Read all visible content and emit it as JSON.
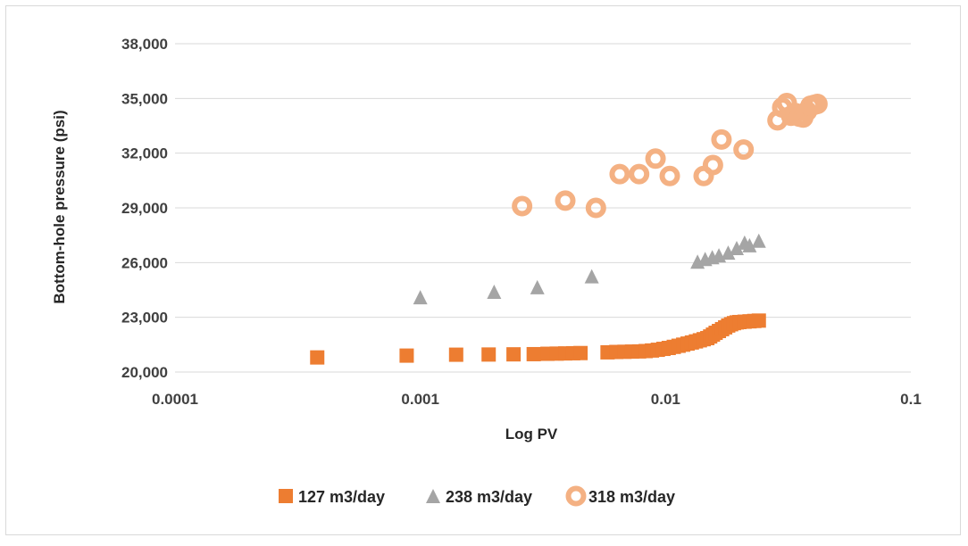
{
  "chart_data": {
    "type": "scatter",
    "title": "",
    "xlabel": "Log PV",
    "ylabel": "Bottom-hole pressure (psi)",
    "x_scale": "log",
    "xlim": [
      0.0001,
      0.1
    ],
    "ylim": [
      20000,
      38000
    ],
    "x_ticks": [
      0.0001,
      0.001,
      0.01,
      0.1
    ],
    "x_tick_labels": [
      "0.0001",
      "0.001",
      "0.01",
      "0.1"
    ],
    "y_ticks": [
      20000,
      23000,
      26000,
      29000,
      32000,
      35000,
      38000
    ],
    "y_tick_labels": [
      "20,000",
      "23,000",
      "26,000",
      "29,000",
      "32,000",
      "35,000",
      "38,000"
    ],
    "grid": true,
    "legend_position": "bottom",
    "series": [
      {
        "name": "127 m3/day",
        "marker": "square",
        "color": "#ed7d31",
        "points": [
          [
            0.00038,
            20800
          ],
          [
            0.00088,
            20900
          ],
          [
            0.0014,
            20950
          ],
          [
            0.0019,
            20960
          ],
          [
            0.0024,
            20970
          ],
          [
            0.0029,
            20980
          ],
          [
            0.0033,
            21000
          ],
          [
            0.0036,
            21010
          ],
          [
            0.0039,
            21020
          ],
          [
            0.0042,
            21030
          ],
          [
            0.0045,
            21040
          ],
          [
            0.0058,
            21080
          ],
          [
            0.0063,
            21100
          ],
          [
            0.0068,
            21110
          ],
          [
            0.0073,
            21120
          ],
          [
            0.0078,
            21130
          ],
          [
            0.0083,
            21150
          ],
          [
            0.0088,
            21180
          ],
          [
            0.0093,
            21220
          ],
          [
            0.0098,
            21270
          ],
          [
            0.0103,
            21320
          ],
          [
            0.0108,
            21380
          ],
          [
            0.0113,
            21440
          ],
          [
            0.0118,
            21500
          ],
          [
            0.0123,
            21560
          ],
          [
            0.0128,
            21620
          ],
          [
            0.0133,
            21680
          ],
          [
            0.0138,
            21740
          ],
          [
            0.0143,
            21800
          ],
          [
            0.0148,
            21860
          ],
          [
            0.0152,
            21950
          ],
          [
            0.0156,
            22050
          ],
          [
            0.016,
            22150
          ],
          [
            0.0165,
            22250
          ],
          [
            0.017,
            22350
          ],
          [
            0.0175,
            22450
          ],
          [
            0.018,
            22550
          ],
          [
            0.0185,
            22620
          ],
          [
            0.019,
            22680
          ],
          [
            0.0195,
            22720
          ],
          [
            0.02,
            22740
          ],
          [
            0.021,
            22760
          ],
          [
            0.022,
            22780
          ],
          [
            0.023,
            22800
          ],
          [
            0.024,
            22820
          ]
        ]
      },
      {
        "name": "238 m3/day",
        "marker": "triangle",
        "color": "#a5a5a5",
        "points": [
          [
            0.001,
            24100
          ],
          [
            0.002,
            24400
          ],
          [
            0.003,
            24650
          ],
          [
            0.005,
            25250
          ],
          [
            0.0135,
            26050
          ],
          [
            0.0145,
            26200
          ],
          [
            0.0155,
            26300
          ],
          [
            0.0165,
            26400
          ],
          [
            0.018,
            26550
          ],
          [
            0.0195,
            26800
          ],
          [
            0.021,
            27100
          ],
          [
            0.022,
            26950
          ],
          [
            0.024,
            27200
          ]
        ]
      },
      {
        "name": "318 m3/day",
        "marker": "ring",
        "color": "#f4b183",
        "points": [
          [
            0.0026,
            29100
          ],
          [
            0.0039,
            29400
          ],
          [
            0.0052,
            29000
          ],
          [
            0.0065,
            30850
          ],
          [
            0.0078,
            30850
          ],
          [
            0.0091,
            31700
          ],
          [
            0.0104,
            30750
          ],
          [
            0.0143,
            30750
          ],
          [
            0.0156,
            31350
          ],
          [
            0.0169,
            32750
          ],
          [
            0.0208,
            32200
          ],
          [
            0.0286,
            33800
          ],
          [
            0.0299,
            34500
          ],
          [
            0.0312,
            34750
          ],
          [
            0.0325,
            34050
          ],
          [
            0.0338,
            34200
          ],
          [
            0.0351,
            34000
          ],
          [
            0.0364,
            33950
          ],
          [
            0.0377,
            34300
          ],
          [
            0.039,
            34600
          ],
          [
            0.0403,
            34650
          ],
          [
            0.0416,
            34700
          ]
        ]
      }
    ]
  }
}
